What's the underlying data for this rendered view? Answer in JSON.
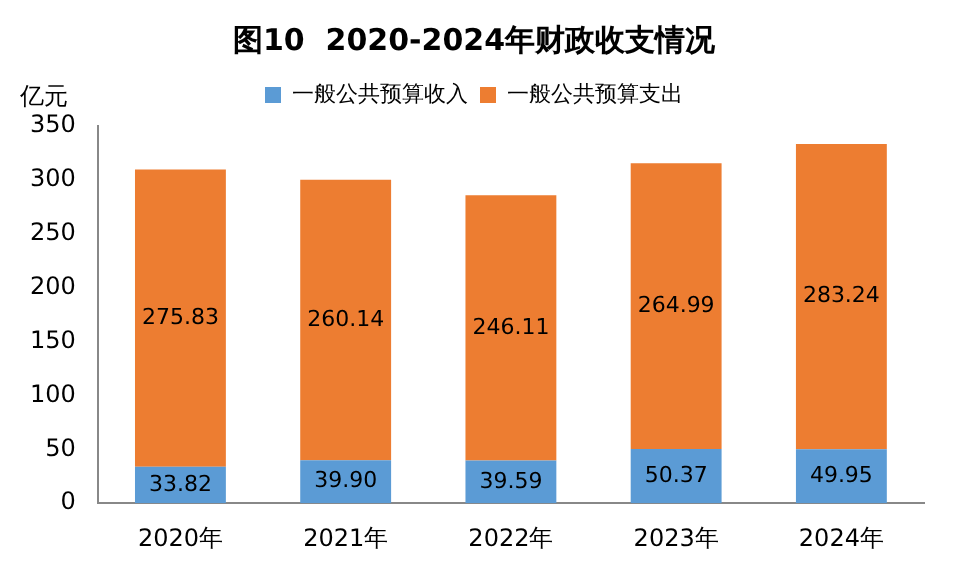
{
  "chart_data": {
    "type": "bar",
    "title": "图10  2020-2024年财政收支情况",
    "ylabel": "亿元",
    "categories": [
      "2020年",
      "2021年",
      "2022年",
      "2023年",
      "2024年"
    ],
    "stacked": true,
    "ylim": [
      0,
      350
    ],
    "yticks": [
      0,
      50,
      100,
      150,
      200,
      250,
      300,
      350
    ],
    "grid": false,
    "legend": "top",
    "series": [
      {
        "name": "一般公共预算收入",
        "color": "#5b9bd5",
        "values": [
          33.82,
          39.9,
          39.59,
          50.37,
          49.95
        ],
        "value_labels": [
          "33.82",
          "39.90",
          "39.59",
          "50.37",
          "49.95"
        ]
      },
      {
        "name": "一般公共预算支出",
        "color": "#ed7d31",
        "values": [
          275.83,
          260.14,
          246.11,
          264.99,
          283.24
        ],
        "value_labels": [
          "275.83",
          "260.14",
          "246.11",
          "264.99",
          "283.24"
        ]
      }
    ]
  }
}
